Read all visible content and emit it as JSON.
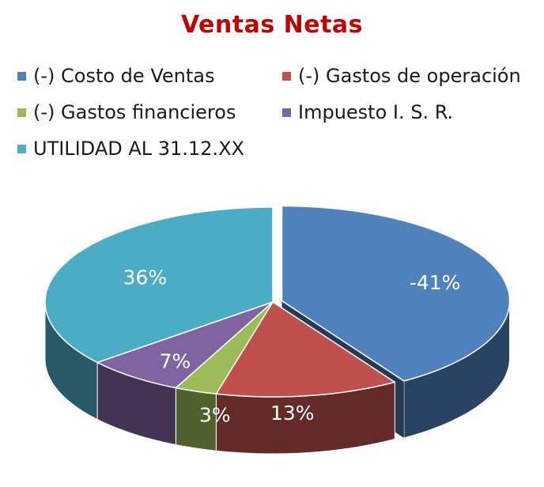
{
  "chart_data": {
    "type": "pie",
    "title": "Ventas Netas",
    "legend_position": "top",
    "slices": [
      {
        "label": "(-) Costo de Ventas",
        "value": 41,
        "display": "-41%",
        "color": "#4f81bd"
      },
      {
        "label": "(-) Gastos de operación",
        "value": 13,
        "display": "13%",
        "color": "#c0504d"
      },
      {
        "label": "(-) Gastos financieros",
        "value": 3,
        "display": "3%",
        "color": "#9bbb59"
      },
      {
        "label": "Impuesto  I. S. R.",
        "value": 7,
        "display": "7%",
        "color": "#8064a2"
      },
      {
        "label": "UTILIDAD  AL 31.12.XX",
        "value": 36,
        "display": "36%",
        "color": "#4bacc6"
      }
    ]
  }
}
